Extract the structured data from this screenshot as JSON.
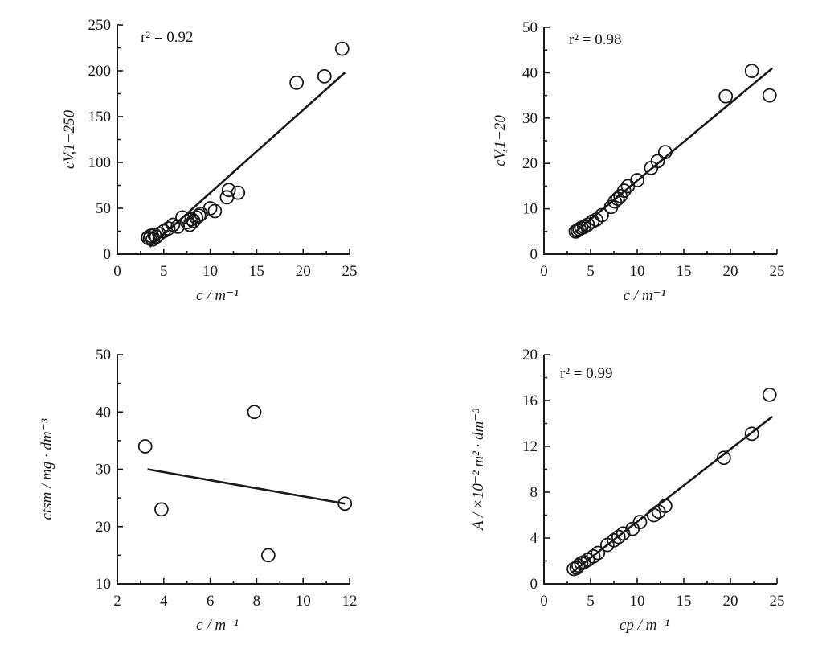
{
  "chart_data": [
    {
      "type": "scatter",
      "title": "",
      "xlabel": "c / m⁻¹",
      "ylabel": "cV,1−250",
      "annotation": "r² = 0.92",
      "xlim": [
        0,
        25
      ],
      "ylim": [
        0,
        250
      ],
      "xticks": [
        0,
        5,
        10,
        15,
        20,
        25
      ],
      "yticks": [
        0,
        50,
        100,
        150,
        200,
        250
      ],
      "grid": false,
      "points": [
        [
          3.3,
          18
        ],
        [
          3.5,
          17
        ],
        [
          3.6,
          20
        ],
        [
          3.8,
          16
        ],
        [
          4.0,
          21
        ],
        [
          4.2,
          19
        ],
        [
          4.5,
          22
        ],
        [
          5.0,
          25
        ],
        [
          5.5,
          28
        ],
        [
          6.0,
          32
        ],
        [
          6.5,
          30
        ],
        [
          7.0,
          40
        ],
        [
          7.5,
          35
        ],
        [
          7.8,
          32
        ],
        [
          8.0,
          38
        ],
        [
          8.2,
          36
        ],
        [
          8.5,
          40
        ],
        [
          8.8,
          42
        ],
        [
          9.0,
          44
        ],
        [
          10.0,
          50
        ],
        [
          10.5,
          47
        ],
        [
          11.8,
          62
        ],
        [
          12.0,
          70
        ],
        [
          13.0,
          67
        ],
        [
          19.3,
          187
        ],
        [
          22.3,
          194
        ],
        [
          24.2,
          224
        ]
      ],
      "fit": [
        [
          3.5,
          8
        ],
        [
          24.5,
          198
        ]
      ]
    },
    {
      "type": "scatter",
      "title": "",
      "xlabel": "c / m⁻¹",
      "ylabel": "cV,1−20",
      "annotation": "r² = 0.98",
      "xlim": [
        0,
        25
      ],
      "ylim": [
        0,
        50
      ],
      "xticks": [
        0,
        5,
        10,
        15,
        20,
        25
      ],
      "yticks": [
        0,
        10,
        20,
        30,
        40,
        50
      ],
      "grid": false,
      "points": [
        [
          3.4,
          5.0
        ],
        [
          3.6,
          5.2
        ],
        [
          3.8,
          5.5
        ],
        [
          4.0,
          5.8
        ],
        [
          4.3,
          6.0
        ],
        [
          4.7,
          6.5
        ],
        [
          5.2,
          7.2
        ],
        [
          5.6,
          7.6
        ],
        [
          6.2,
          8.6
        ],
        [
          7.2,
          10.4
        ],
        [
          7.6,
          11.6
        ],
        [
          7.9,
          12.2
        ],
        [
          8.2,
          12.8
        ],
        [
          8.6,
          14.0
        ],
        [
          9.0,
          15.0
        ],
        [
          10.0,
          16.3
        ],
        [
          11.5,
          19.0
        ],
        [
          12.2,
          20.5
        ],
        [
          13.0,
          22.5
        ],
        [
          19.5,
          34.8
        ],
        [
          22.3,
          40.4
        ],
        [
          24.2,
          35.0
        ]
      ],
      "fit": [
        [
          3.2,
          4.6
        ],
        [
          24.5,
          41.0
        ]
      ]
    },
    {
      "type": "scatter",
      "title": "",
      "xlabel": "c / m⁻¹",
      "ylabel": "ctsm / mg · dm⁻³",
      "annotation": "",
      "xlim": [
        2,
        12
      ],
      "ylim": [
        10,
        50
      ],
      "xticks": [
        2,
        4,
        6,
        8,
        10,
        12
      ],
      "yticks": [
        10,
        20,
        30,
        40,
        50
      ],
      "grid": false,
      "points": [
        [
          3.2,
          34
        ],
        [
          3.9,
          23
        ],
        [
          7.9,
          40
        ],
        [
          8.5,
          15
        ],
        [
          11.8,
          24
        ]
      ],
      "fit": [
        [
          3.3,
          30.0
        ],
        [
          11.8,
          24.0
        ]
      ]
    },
    {
      "type": "scatter",
      "title": "",
      "xlabel": "cp / m⁻¹",
      "ylabel": "A / ×10⁻² m² · dm⁻³",
      "annotation": "r² = 0.99",
      "xlim": [
        0,
        25
      ],
      "ylim": [
        0,
        20
      ],
      "xticks": [
        0,
        5,
        10,
        15,
        20,
        25
      ],
      "yticks": [
        0,
        4,
        8,
        12,
        16,
        20
      ],
      "grid": false,
      "points": [
        [
          3.2,
          1.3
        ],
        [
          3.5,
          1.4
        ],
        [
          3.7,
          1.6
        ],
        [
          4.0,
          1.8
        ],
        [
          4.3,
          1.9
        ],
        [
          4.7,
          2.1
        ],
        [
          5.3,
          2.4
        ],
        [
          5.8,
          2.7
        ],
        [
          6.8,
          3.4
        ],
        [
          7.5,
          3.8
        ],
        [
          8.0,
          4.1
        ],
        [
          8.5,
          4.4
        ],
        [
          9.5,
          4.8
        ],
        [
          10.3,
          5.4
        ],
        [
          11.8,
          6.0
        ],
        [
          12.3,
          6.3
        ],
        [
          13.0,
          6.8
        ],
        [
          19.3,
          11.0
        ],
        [
          22.3,
          13.1
        ],
        [
          24.2,
          16.5
        ]
      ],
      "fit": [
        [
          3.0,
          1.0
        ],
        [
          24.5,
          14.6
        ]
      ]
    }
  ]
}
